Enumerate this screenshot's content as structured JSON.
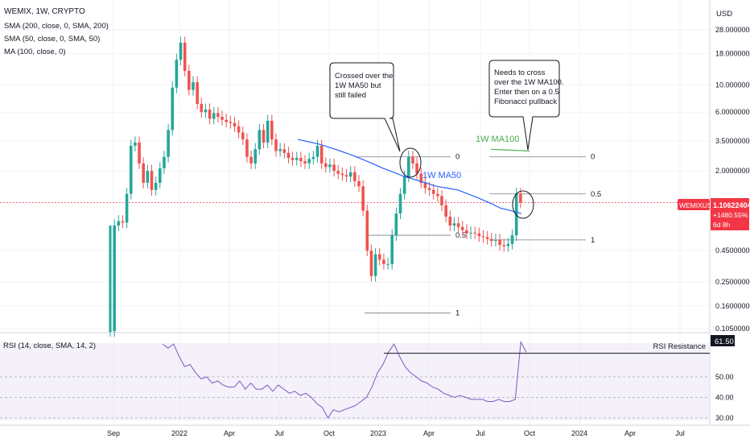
{
  "header": {
    "symbol": "WEMIX, 1W, CRYPTO",
    "indicators": [
      "SMA (200, close, 0, SMA, 200)",
      "SMA (50, close, 0, SMA, 50)",
      "MA (100, close, 0)"
    ],
    "currency": "USD"
  },
  "price_badge": {
    "symbol": "WEMIXUSD",
    "price": "1.10622404",
    "change": "+1480.55%",
    "countdown": "6d 8h"
  },
  "annotations": {
    "callout_left": [
      "Crossed over the",
      "1W MA50 but",
      "still failed"
    ],
    "callout_right": [
      "Needs to cross",
      "over the 1W MA100.",
      "Enter then on a 0.5",
      "Fibonacci pullback"
    ],
    "ma50_label": "1W MA50",
    "ma100_label": "1W MA100",
    "rsi_resistance_label": "RSI Resistance"
  },
  "rsi": {
    "label": "RSI (14, close, SMA, 14, 2)",
    "value_badge": "61.50",
    "ticks": [
      "50.00",
      "40.00",
      "30.00"
    ]
  },
  "colors": {
    "up": "#26a69a",
    "down": "#ef5350",
    "ma50": "#2962ff",
    "ma100": "#4caf50",
    "rsi": "#7e57c2",
    "badge": "#f23645"
  },
  "chart_data": [
    {
      "type": "candlestick",
      "title": "WEMIX, 1W, CRYPTO",
      "y_scale": "log",
      "ylim": [
        0.1,
        28
      ],
      "y_ticks": [
        "28.00000000",
        "18.00000000",
        "10.00000000",
        "6.00000000",
        "3.50000000",
        "2.00000000",
        "1.10622404",
        "0.45000000",
        "0.25000000",
        "0.16000000",
        "0.10500000"
      ],
      "x_ticks": [
        "Sep",
        "2022",
        "Apr",
        "Jul",
        "Oct",
        "2023",
        "Apr",
        "Jul",
        "Oct",
        "2024",
        "Apr",
        "Jul"
      ],
      "weekly_close_approx": [
        0.1,
        0.72,
        0.78,
        0.76,
        1.3,
        3.2,
        3.4,
        2.3,
        1.6,
        2.0,
        1.4,
        1.6,
        2.1,
        2.6,
        4.3,
        9.5,
        16,
        22,
        13,
        9.1,
        10.5,
        7.0,
        6.0,
        6.3,
        5.3,
        5.9,
        5.5,
        5.2,
        5.0,
        4.9,
        4.6,
        4.1,
        3.6,
        2.6,
        2.3,
        3.0,
        4.3,
        3.4,
        5.1,
        3.6,
        2.9,
        3.0,
        2.8,
        2.55,
        2.45,
        2.55,
        2.4,
        2.3,
        2.5,
        2.6,
        3.2,
        2.3,
        2.15,
        2.25,
        2.0,
        1.9,
        1.85,
        1.8,
        1.95,
        1.65,
        1.5,
        0.95,
        0.45,
        0.28,
        0.42,
        0.38,
        0.35,
        0.35,
        0.6,
        0.9,
        1.3,
        1.8,
        2.6,
        2.3,
        1.9,
        1.6,
        1.45,
        1.4,
        1.3,
        1.25,
        1.05,
        0.85,
        0.72,
        0.75,
        0.7,
        0.66,
        0.62,
        0.63,
        0.62,
        0.59,
        0.58,
        0.56,
        0.54,
        0.55,
        0.5,
        0.49,
        0.51,
        0.6,
        1.3,
        1.106
      ],
      "series": [
        {
          "name": "1W MA50",
          "values": [
            3.6,
            3.45,
            3.3,
            3.1,
            2.9,
            2.7,
            2.5,
            2.3,
            2.1,
            1.95,
            1.8,
            1.7,
            1.6,
            1.5,
            1.45,
            1.4,
            1.3,
            1.2,
            1.1,
            1.0,
            0.95,
            0.9
          ]
        },
        {
          "name": "1W MA100",
          "values": [
            3.0,
            2.9
          ]
        }
      ],
      "fibonacci": {
        "first": {
          "levels": [
            "0",
            "0.5",
            "1"
          ],
          "level_values": [
            2.6,
            0.6,
            0.14
          ]
        },
        "second": {
          "levels": [
            "0",
            "0.5",
            "1"
          ],
          "level_values": [
            2.6,
            1.3,
            0.55
          ]
        }
      },
      "last_price": 1.106
    },
    {
      "type": "line",
      "title": "RSI (14, close, SMA, 14, 2)",
      "ylim": [
        28,
        68
      ],
      "y_ticks": [
        50,
        40,
        30
      ],
      "rsi_values": [
        66,
        64,
        66,
        60,
        55,
        56,
        52,
        49,
        50,
        47,
        48,
        46,
        45,
        45,
        48,
        44,
        47,
        44,
        44,
        46,
        43,
        46,
        44,
        42,
        43,
        41,
        42,
        40,
        37,
        35,
        30,
        34,
        33,
        34,
        35,
        36,
        38,
        40,
        45,
        52,
        56,
        62,
        66,
        60,
        55,
        52,
        50,
        48,
        47,
        45,
        44,
        42,
        41,
        40,
        41,
        40,
        39,
        39,
        39,
        38,
        38,
        39,
        38,
        38,
        39,
        67,
        62
      ],
      "resistance_level": 61.5
    }
  ]
}
